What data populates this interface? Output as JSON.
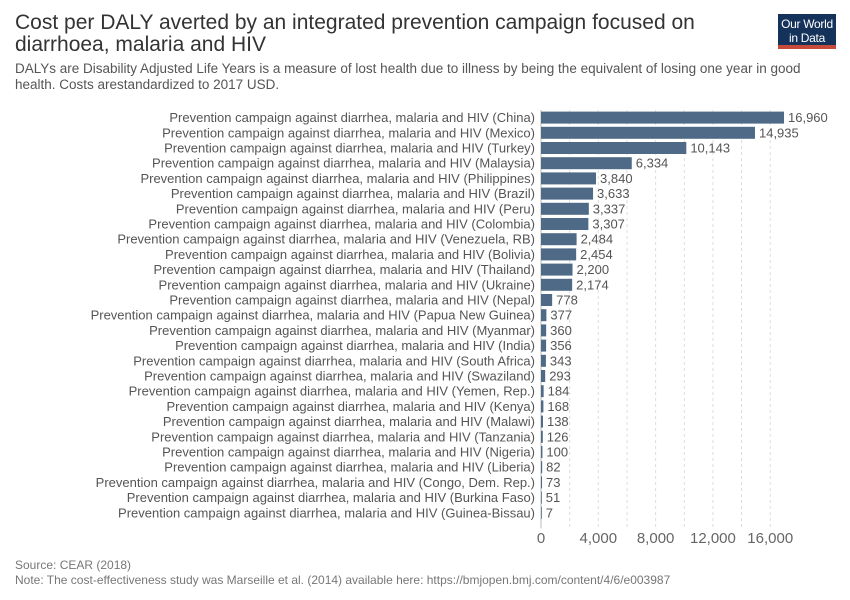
{
  "header": {
    "title": "Cost per DALY averted by an integrated prevention campaign focused on diarrhoea, malaria and HIV",
    "subtitle": "DALYs are Disability Adjusted Life Years is a measure of lost health due to illness by being the equivalent of losing one year in good health. Costs arestandardized to 2017 USD.",
    "logo_line1": "Our World",
    "logo_line2": "in Data"
  },
  "footer": {
    "source": "Source: CEAR (2018)",
    "note": "Note: The cost-effectiveness study was Marseille et al. (2014) available here: https://bmjopen.bmj.com/content/4/6/e003987"
  },
  "colors": {
    "bar": "#4e6a87",
    "grid": "#dddddd",
    "text": "#555555",
    "logo_bg": "#15325b",
    "logo_accent": "#c74a3a"
  },
  "chart_data": {
    "type": "bar",
    "orientation": "horizontal",
    "xlim": [
      0,
      16960
    ],
    "x_ticks": [
      0,
      4000,
      8000,
      12000,
      16000
    ],
    "x_tick_labels": [
      "0",
      "4,000",
      "8,000",
      "12,000",
      "16,000"
    ],
    "grid": true,
    "categories": [
      "Prevention campaign against diarrhea, malaria and HIV (China)",
      "Prevention campaign against diarrhea, malaria and HIV (Mexico)",
      "Prevention campaign against diarrhea, malaria and HIV (Turkey)",
      "Prevention campaign against diarrhea, malaria and HIV (Malaysia)",
      "Prevention campaign against diarrhea, malaria and HIV (Philippines)",
      "Prevention campaign against diarrhea, malaria and HIV (Brazil)",
      "Prevention campaign against diarrhea, malaria and HIV (Peru)",
      "Prevention campaign against diarrhea, malaria and HIV (Colombia)",
      "Prevention campaign against diarrhea, malaria and HIV (Venezuela, RB)",
      "Prevention campaign against diarrhea, malaria and HIV (Bolivia)",
      "Prevention campaign against diarrhea, malaria and HIV (Thailand)",
      "Prevention campaign against diarrhea, malaria and HIV (Ukraine)",
      "Prevention campaign against diarrhea, malaria and HIV (Nepal)",
      "Prevention campaign against diarrhea, malaria and HIV (Papua New Guinea)",
      "Prevention campaign against diarrhea, malaria and HIV (Myanmar)",
      "Prevention campaign against diarrhea, malaria and HIV (India)",
      "Prevention campaign against diarrhea, malaria and HIV (South Africa)",
      "Prevention campaign against diarrhea, malaria and HIV (Swaziland)",
      "Prevention campaign against diarrhea, malaria and HIV (Yemen, Rep.)",
      "Prevention campaign against diarrhea, malaria and HIV (Kenya)",
      "Prevention campaign against diarrhea, malaria and HIV (Malawi)",
      "Prevention campaign against diarrhea, malaria and HIV (Tanzania)",
      "Prevention campaign against diarrhea, malaria and HIV (Nigeria)",
      "Prevention campaign against diarrhea, malaria and HIV (Liberia)",
      "Prevention campaign against diarrhea, malaria and HIV (Congo, Dem. Rep.)",
      "Prevention campaign against diarrhea, malaria and HIV (Burkina Faso)",
      "Prevention campaign against diarrhea, malaria and HIV (Guinea-Bissau)"
    ],
    "values": [
      16960,
      14935,
      10143,
      6334,
      3840,
      3633,
      3337,
      3307,
      2484,
      2454,
      2200,
      2174,
      778,
      377,
      360,
      356,
      343,
      293,
      184,
      168,
      138,
      126,
      100,
      82,
      73,
      51,
      7
    ],
    "value_labels": [
      "16,960",
      "14,935",
      "10,143",
      "6,334",
      "3,840",
      "3,633",
      "3,337",
      "3,307",
      "2,484",
      "2,454",
      "2,200",
      "2,174",
      "778",
      "377",
      "360",
      "356",
      "343",
      "293",
      "184",
      "168",
      "138",
      "126",
      "100",
      "82",
      "73",
      "51",
      "7"
    ]
  }
}
